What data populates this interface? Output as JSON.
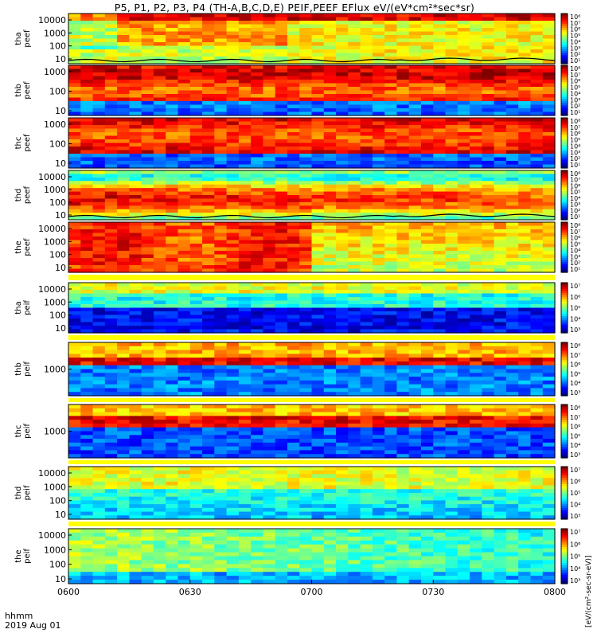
{
  "title": "P5, P1, P2, P3, P4 (TH-A,B,C,D,E) PEIF,PEEF EFlux eV/(eV*cm²*sec*sr)",
  "footer": {
    "time_label": "hhmm",
    "date_label": "2019 Aug 01"
  },
  "x_ticks": [
    "0600",
    "0630",
    "0700",
    "0730",
    "0800"
  ],
  "colorbar_unit": "[eV/(cm²-sec-sr-eV)]",
  "chart_data": {
    "type": "heatmap",
    "x_range": [
      "0600",
      "0800"
    ],
    "colormap": "rainbow",
    "panels": [
      {
        "probe": "tha",
        "species": "peef",
        "ylabel": [
          "tha",
          "peef"
        ],
        "yscale": "log",
        "y_ticks": [
          "10000",
          "1000",
          "100",
          "10"
        ],
        "colorbar_ticks": [
          "10⁸",
          "10⁷",
          "10⁶",
          "10⁵",
          "10⁴",
          "10³",
          "10²",
          "10¹"
        ],
        "color_range_exponent": [
          1,
          8
        ],
        "overlay_line": true
      },
      {
        "probe": "thb",
        "species": "peef",
        "ylabel": [
          "thb",
          "peef"
        ],
        "yscale": "log",
        "y_ticks": [
          "1000",
          "100",
          "10"
        ],
        "colorbar_ticks": [
          "10⁸",
          "10⁷",
          "10⁶",
          "10⁵",
          "10⁴",
          "10³",
          "10²",
          "10¹"
        ],
        "color_range_exponent": [
          1,
          8
        ],
        "overlay_line": false
      },
      {
        "probe": "thc",
        "species": "peef",
        "ylabel": [
          "thc",
          "peef"
        ],
        "yscale": "log",
        "y_ticks": [
          "1000",
          "100",
          "10"
        ],
        "colorbar_ticks": [
          "10⁸",
          "10⁷",
          "10⁶",
          "10⁵",
          "10⁴",
          "10³",
          "10²",
          "10¹"
        ],
        "color_range_exponent": [
          1,
          8
        ],
        "overlay_line": false
      },
      {
        "probe": "thd",
        "species": "peef",
        "ylabel": [
          "thd",
          "peef"
        ],
        "yscale": "log",
        "y_ticks": [
          "10000",
          "1000",
          "100",
          "10"
        ],
        "colorbar_ticks": [
          "10⁸",
          "10⁷",
          "10⁶",
          "10⁵",
          "10⁴",
          "10³",
          "10²",
          "10¹"
        ],
        "color_range_exponent": [
          1,
          8
        ],
        "overlay_line": true
      },
      {
        "probe": "the",
        "species": "peef",
        "ylabel": [
          "the",
          "peef"
        ],
        "yscale": "log",
        "y_ticks": [
          "10000",
          "1000",
          "100",
          "10"
        ],
        "colorbar_ticks": [
          "10⁸",
          "10⁷",
          "10⁶",
          "10⁵",
          "10⁴",
          "10³",
          "10²",
          "10¹"
        ],
        "color_range_exponent": [
          1,
          8
        ],
        "overlay_line": false
      },
      {
        "probe": "tha",
        "species": "peif",
        "ylabel": [
          "tha",
          "peif"
        ],
        "yscale": "log",
        "y_ticks": [
          "10000",
          "1000",
          "100",
          "10"
        ],
        "colorbar_ticks": [
          "10⁷",
          "10⁶",
          "10⁵",
          "10⁴",
          "10³"
        ],
        "color_range_exponent": [
          3,
          7
        ],
        "overlay_line": false
      },
      {
        "probe": "thb",
        "species": "peif",
        "ylabel": [
          "thb",
          "peif"
        ],
        "yscale": "log",
        "y_ticks": [
          "1000"
        ],
        "colorbar_ticks": [
          "10⁸",
          "10⁷",
          "10⁶",
          "10⁵",
          "10⁴",
          "10³"
        ],
        "color_range_exponent": [
          3,
          8
        ],
        "overlay_line": false
      },
      {
        "probe": "thc",
        "species": "peif",
        "ylabel": [
          "thc",
          "peif"
        ],
        "yscale": "log",
        "y_ticks": [
          "1000"
        ],
        "colorbar_ticks": [
          "10⁸",
          "10⁷",
          "10⁶",
          "10⁵",
          "10⁴",
          "10³"
        ],
        "color_range_exponent": [
          3,
          8
        ],
        "overlay_line": false
      },
      {
        "probe": "thd",
        "species": "peif",
        "ylabel": [
          "thd",
          "peif"
        ],
        "yscale": "log",
        "y_ticks": [
          "10000",
          "1000",
          "100",
          "10"
        ],
        "colorbar_ticks": [
          "10⁷",
          "10⁶",
          "10⁵",
          "10⁴",
          "10³"
        ],
        "color_range_exponent": [
          3,
          7
        ],
        "overlay_line": false
      },
      {
        "probe": "the",
        "species": "peif",
        "ylabel": [
          "the",
          "peif"
        ],
        "yscale": "log",
        "y_ticks": [
          "10000",
          "1000",
          "100",
          "10"
        ],
        "colorbar_ticks": [
          "10⁷",
          "10⁶",
          "10⁵",
          "10⁴",
          "10³"
        ],
        "color_range_exponent": [
          3,
          7
        ],
        "overlay_line": false
      }
    ]
  }
}
